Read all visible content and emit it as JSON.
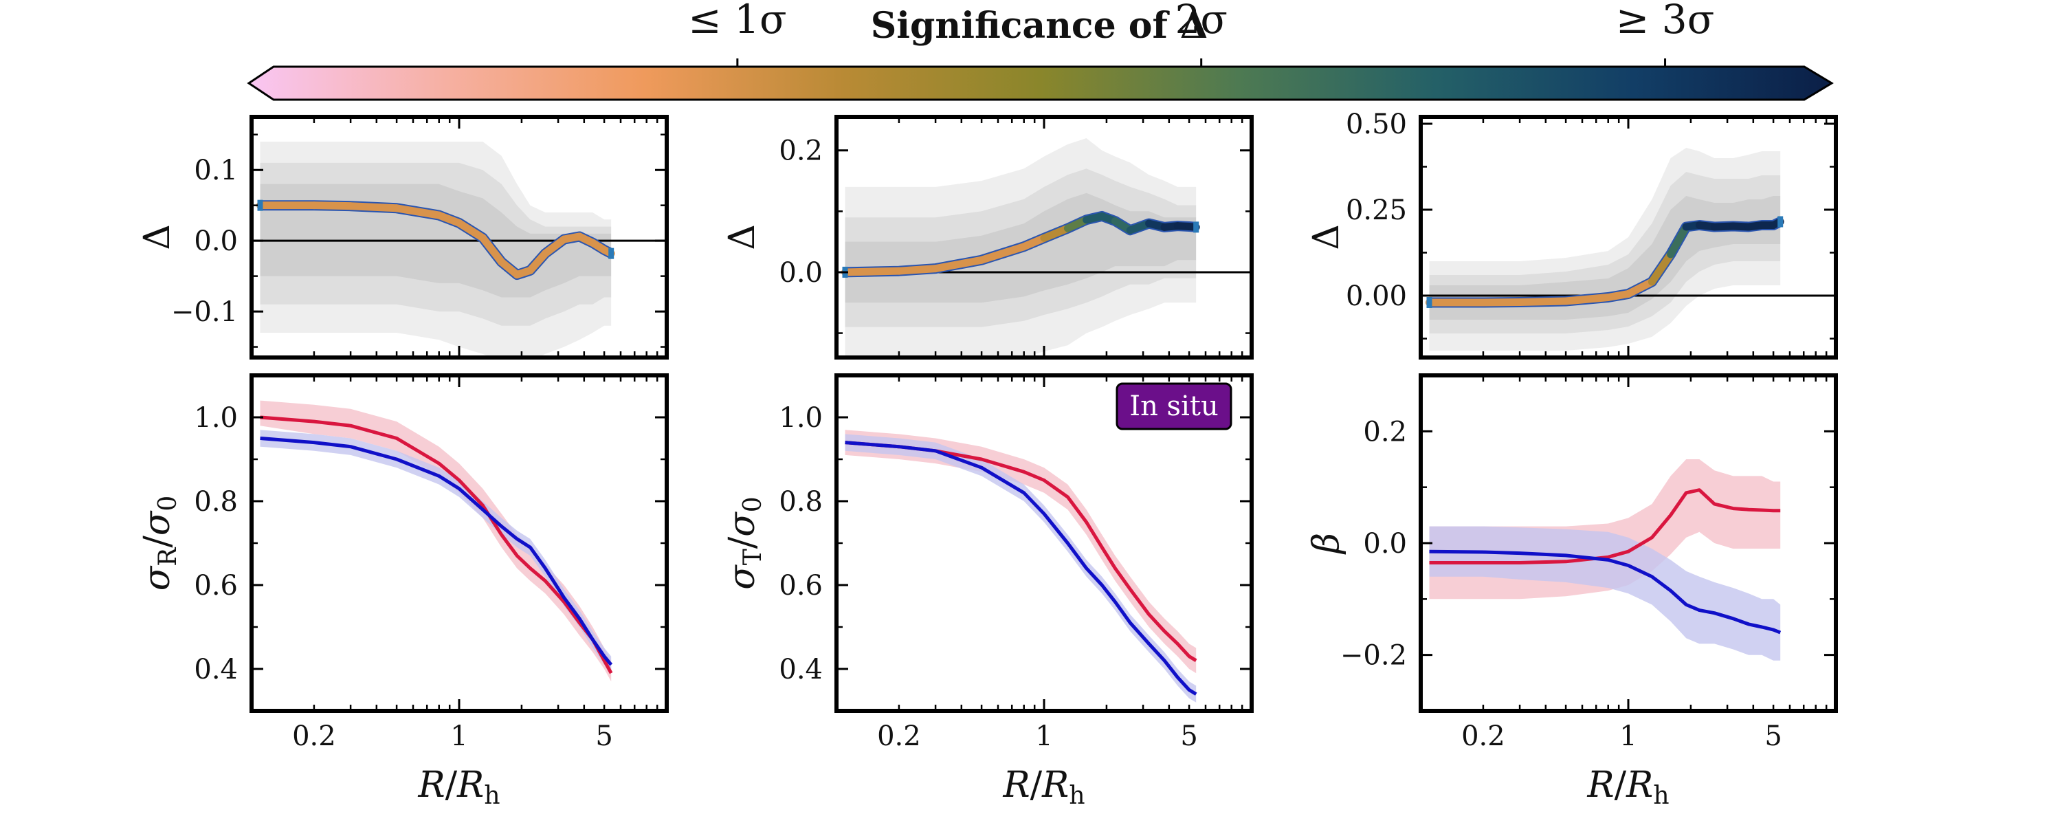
{
  "colorbar": {
    "title": "Significance of Δ",
    "ticks": [
      {
        "label": "≤ 1σ",
        "value": 1
      },
      {
        "label": "2σ",
        "value": 2
      },
      {
        "label": "≥ 3σ",
        "value": 3
      }
    ],
    "range": [
      0,
      3.3
    ],
    "colors": [
      "#f9c6f3",
      "#f6b0a2",
      "#ef9a5c",
      "#b98a35",
      "#8a862b",
      "#4e7a52",
      "#246067",
      "#123e66",
      "#0b1f47"
    ]
  },
  "annotation": {
    "label": "In situ",
    "bg": "#6b0f8a",
    "fg": "#ffffff"
  },
  "colors": {
    "red": "#d9163f",
    "blue": "#1010c8",
    "red_band": "#f5c2cb",
    "blue_band": "#c4c6ef",
    "grey_band": "#ececec",
    "zero_line": "#000000"
  },
  "x_axis": {
    "label": "R/R_h",
    "scale": "log",
    "ticks": [
      "0.2",
      "1",
      "5"
    ]
  },
  "chart_data": [
    {
      "type": "line",
      "panel": "top-left",
      "ylabel": "Δ",
      "xlim": [
        0.1,
        10
      ],
      "ylim": [
        -0.165,
        0.175
      ],
      "yticks": [
        -0.1,
        0.0,
        0.1
      ],
      "ytick_labels": [
        "−0.1",
        "0.0",
        "0.1"
      ],
      "show_xticklabels": false,
      "x": [
        0.11,
        0.2,
        0.3,
        0.5,
        0.8,
        1.0,
        1.3,
        1.6,
        1.9,
        2.2,
        2.6,
        3.2,
        3.8,
        4.4,
        5.0,
        5.4
      ],
      "values": [
        0.05,
        0.05,
        0.049,
        0.046,
        0.036,
        0.025,
        0.004,
        -0.03,
        -0.048,
        -0.042,
        -0.018,
        0.002,
        0.006,
        -0.003,
        -0.013,
        -0.018
      ],
      "significance": [
        1,
        1,
        1,
        1,
        1,
        1,
        1,
        1,
        1,
        1,
        1,
        1,
        1,
        1,
        1,
        1
      ],
      "bands": [
        {
          "lower": [
            -0.13,
            -0.13,
            -0.13,
            -0.13,
            -0.14,
            -0.15,
            -0.16,
            -0.17,
            -0.17,
            -0.17,
            -0.16,
            -0.15,
            -0.14,
            -0.13,
            -0.12,
            -0.12
          ],
          "upper": [
            0.14,
            0.14,
            0.14,
            0.14,
            0.14,
            0.14,
            0.14,
            0.12,
            0.08,
            0.05,
            0.04,
            0.04,
            0.04,
            0.04,
            0.03,
            0.03
          ]
        },
        {
          "lower": [
            -0.09,
            -0.09,
            -0.09,
            -0.09,
            -0.1,
            -0.1,
            -0.11,
            -0.12,
            -0.12,
            -0.12,
            -0.11,
            -0.1,
            -0.09,
            -0.09,
            -0.08,
            -0.08
          ],
          "upper": [
            0.11,
            0.11,
            0.11,
            0.11,
            0.11,
            0.11,
            0.1,
            0.08,
            0.05,
            0.03,
            0.02,
            0.02,
            0.02,
            0.02,
            0.02,
            0.02
          ]
        },
        {
          "lower": [
            -0.05,
            -0.05,
            -0.05,
            -0.05,
            -0.06,
            -0.06,
            -0.07,
            -0.08,
            -0.08,
            -0.08,
            -0.07,
            -0.06,
            -0.05,
            -0.05,
            -0.05,
            -0.05
          ],
          "upper": [
            0.08,
            0.08,
            0.08,
            0.08,
            0.08,
            0.07,
            0.06,
            0.04,
            0.02,
            0.01,
            0.01,
            0.01,
            0.01,
            0.01,
            0.01,
            0.01
          ]
        }
      ]
    },
    {
      "type": "line",
      "panel": "top-middle",
      "ylabel": "Δ",
      "xlim": [
        0.1,
        10
      ],
      "ylim": [
        -0.14,
        0.255
      ],
      "yticks": [
        0.0,
        0.2
      ],
      "ytick_labels": [
        "0.0",
        "0.2"
      ],
      "show_xticklabels": false,
      "x": [
        0.11,
        0.2,
        0.3,
        0.5,
        0.8,
        1.0,
        1.3,
        1.6,
        1.9,
        2.2,
        2.6,
        3.2,
        3.8,
        4.4,
        5.0,
        5.4
      ],
      "values": [
        0.0,
        0.002,
        0.006,
        0.02,
        0.042,
        0.056,
        0.072,
        0.086,
        0.092,
        0.084,
        0.069,
        0.08,
        0.074,
        0.076,
        0.075,
        0.074
      ],
      "significance": [
        1,
        1,
        1,
        1,
        1,
        1,
        1.5,
        2.4,
        2.7,
        2.4,
        2.3,
        2.9,
        3.1,
        3.2,
        3.2,
        3.2
      ],
      "bands": [
        {
          "lower": [
            -0.15,
            -0.15,
            -0.15,
            -0.15,
            -0.14,
            -0.13,
            -0.12,
            -0.1,
            -0.09,
            -0.08,
            -0.07,
            -0.06,
            -0.05,
            -0.05,
            -0.05,
            -0.05
          ],
          "upper": [
            0.14,
            0.14,
            0.14,
            0.15,
            0.17,
            0.19,
            0.21,
            0.22,
            0.2,
            0.19,
            0.18,
            0.16,
            0.15,
            0.14,
            0.14,
            0.14
          ]
        },
        {
          "lower": [
            -0.09,
            -0.09,
            -0.09,
            -0.09,
            -0.08,
            -0.07,
            -0.06,
            -0.05,
            -0.04,
            -0.03,
            -0.02,
            -0.02,
            -0.01,
            -0.01,
            -0.01,
            -0.01
          ],
          "upper": [
            0.09,
            0.09,
            0.09,
            0.1,
            0.12,
            0.14,
            0.16,
            0.17,
            0.16,
            0.15,
            0.14,
            0.13,
            0.12,
            0.11,
            0.11,
            0.11
          ]
        },
        {
          "lower": [
            -0.05,
            -0.05,
            -0.05,
            -0.05,
            -0.04,
            -0.03,
            -0.02,
            -0.01,
            0.0,
            0.01,
            0.01,
            0.01,
            0.01,
            0.02,
            0.02,
            0.02
          ],
          "upper": [
            0.05,
            0.05,
            0.05,
            0.06,
            0.08,
            0.1,
            0.12,
            0.13,
            0.12,
            0.11,
            0.1,
            0.1,
            0.09,
            0.09,
            0.09,
            0.09
          ]
        }
      ]
    },
    {
      "type": "line",
      "panel": "top-right",
      "ylabel": "Δ",
      "xlim": [
        0.1,
        10
      ],
      "ylim": [
        -0.18,
        0.52
      ],
      "yticks": [
        0.0,
        0.25,
        0.5
      ],
      "ytick_labels": [
        "0.00",
        "0.25",
        "0.50"
      ],
      "show_xticklabels": false,
      "x": [
        0.11,
        0.2,
        0.3,
        0.5,
        0.8,
        1.0,
        1.3,
        1.6,
        1.9,
        2.2,
        2.6,
        3.2,
        3.8,
        4.4,
        5.0,
        5.4
      ],
      "values": [
        -0.02,
        -0.02,
        -0.019,
        -0.016,
        -0.005,
        0.005,
        0.04,
        0.12,
        0.2,
        0.205,
        0.2,
        0.202,
        0.2,
        0.205,
        0.205,
        0.215
      ],
      "significance": [
        1,
        1,
        1,
        1,
        1,
        1,
        1,
        1.6,
        2.9,
        3.1,
        3.2,
        3.2,
        3.2,
        3.2,
        3.2,
        3.2
      ],
      "bands": [
        {
          "lower": [
            -0.16,
            -0.16,
            -0.16,
            -0.16,
            -0.15,
            -0.14,
            -0.12,
            -0.08,
            -0.03,
            0.0,
            0.02,
            0.03,
            0.03,
            0.03,
            0.03,
            0.03
          ],
          "upper": [
            0.1,
            0.1,
            0.1,
            0.11,
            0.13,
            0.17,
            0.28,
            0.4,
            0.43,
            0.42,
            0.4,
            0.4,
            0.41,
            0.42,
            0.42,
            0.42
          ]
        },
        {
          "lower": [
            -0.11,
            -0.11,
            -0.11,
            -0.11,
            -0.1,
            -0.09,
            -0.06,
            -0.02,
            0.04,
            0.07,
            0.09,
            0.1,
            0.1,
            0.1,
            0.1,
            0.1
          ],
          "upper": [
            0.06,
            0.06,
            0.06,
            0.07,
            0.09,
            0.12,
            0.21,
            0.32,
            0.36,
            0.35,
            0.34,
            0.34,
            0.34,
            0.35,
            0.35,
            0.35
          ]
        },
        {
          "lower": [
            -0.07,
            -0.07,
            -0.07,
            -0.07,
            -0.06,
            -0.05,
            -0.01,
            0.04,
            0.1,
            0.13,
            0.14,
            0.15,
            0.15,
            0.15,
            0.15,
            0.15
          ],
          "upper": [
            0.03,
            0.03,
            0.03,
            0.04,
            0.05,
            0.08,
            0.15,
            0.25,
            0.29,
            0.28,
            0.27,
            0.27,
            0.28,
            0.28,
            0.29,
            0.29
          ]
        }
      ]
    },
    {
      "type": "line",
      "panel": "bottom-left",
      "ylabel": "σ_R/σ_0",
      "xlabel": "R/R_h",
      "xlim": [
        0.1,
        10
      ],
      "ylim": [
        0.3,
        1.1
      ],
      "yticks": [
        0.4,
        0.6,
        0.8,
        1.0
      ],
      "ytick_labels": [
        "0.4",
        "0.6",
        "0.8",
        "1.0"
      ],
      "show_xticklabels": true,
      "x": [
        0.11,
        0.2,
        0.3,
        0.5,
        0.8,
        1.0,
        1.3,
        1.6,
        1.9,
        2.2,
        2.6,
        3.2,
        3.8,
        4.4,
        5.0,
        5.4
      ],
      "series": [
        {
          "color": "red",
          "values": [
            1.0,
            0.99,
            0.98,
            0.95,
            0.89,
            0.85,
            0.79,
            0.72,
            0.67,
            0.64,
            0.61,
            0.56,
            0.51,
            0.47,
            0.42,
            0.39
          ],
          "band": {
            "lower": [
              0.98,
              0.96,
              0.95,
              0.92,
              0.86,
              0.82,
              0.76,
              0.69,
              0.64,
              0.61,
              0.58,
              0.53,
              0.48,
              0.44,
              0.4,
              0.37
            ],
            "upper": [
              1.04,
              1.03,
              1.02,
              0.99,
              0.93,
              0.89,
              0.83,
              0.77,
              0.72,
              0.69,
              0.65,
              0.6,
              0.55,
              0.5,
              0.45,
              0.42
            ]
          }
        },
        {
          "color": "blue",
          "values": [
            0.95,
            0.94,
            0.93,
            0.9,
            0.86,
            0.83,
            0.78,
            0.74,
            0.71,
            0.69,
            0.64,
            0.57,
            0.52,
            0.47,
            0.43,
            0.41
          ],
          "band": {
            "lower": [
              0.93,
              0.92,
              0.91,
              0.88,
              0.84,
              0.81,
              0.76,
              0.72,
              0.69,
              0.67,
              0.62,
              0.55,
              0.5,
              0.45,
              0.41,
              0.39
            ],
            "upper": [
              0.97,
              0.96,
              0.95,
              0.92,
              0.88,
              0.85,
              0.8,
              0.76,
              0.73,
              0.71,
              0.66,
              0.59,
              0.54,
              0.49,
              0.45,
              0.43
            ]
          }
        }
      ]
    },
    {
      "type": "line",
      "panel": "bottom-middle",
      "ylabel": "σ_T/σ_0",
      "xlabel": "R/R_h",
      "xlim": [
        0.1,
        10
      ],
      "ylim": [
        0.3,
        1.1
      ],
      "yticks": [
        0.4,
        0.6,
        0.8,
        1.0
      ],
      "ytick_labels": [
        "0.4",
        "0.6",
        "0.8",
        "1.0"
      ],
      "show_xticklabels": true,
      "x": [
        0.11,
        0.2,
        0.3,
        0.5,
        0.8,
        1.0,
        1.3,
        1.6,
        1.9,
        2.2,
        2.6,
        3.2,
        3.8,
        4.4,
        5.0,
        5.4
      ],
      "series": [
        {
          "color": "red",
          "values": [
            0.94,
            0.93,
            0.92,
            0.9,
            0.87,
            0.85,
            0.81,
            0.75,
            0.69,
            0.64,
            0.59,
            0.53,
            0.49,
            0.46,
            0.43,
            0.42
          ],
          "band": {
            "lower": [
              0.91,
              0.9,
              0.89,
              0.87,
              0.84,
              0.82,
              0.78,
              0.72,
              0.66,
              0.61,
              0.56,
              0.5,
              0.46,
              0.43,
              0.4,
              0.39
            ],
            "upper": [
              0.97,
              0.96,
              0.95,
              0.93,
              0.9,
              0.88,
              0.84,
              0.78,
              0.72,
              0.67,
              0.62,
              0.56,
              0.52,
              0.49,
              0.46,
              0.45
            ]
          }
        },
        {
          "color": "blue",
          "values": [
            0.94,
            0.93,
            0.92,
            0.88,
            0.82,
            0.77,
            0.7,
            0.64,
            0.6,
            0.56,
            0.51,
            0.46,
            0.42,
            0.38,
            0.35,
            0.34
          ],
          "band": {
            "lower": [
              0.92,
              0.91,
              0.9,
              0.86,
              0.8,
              0.75,
              0.68,
              0.62,
              0.58,
              0.54,
              0.49,
              0.44,
              0.4,
              0.36,
              0.33,
              0.32
            ],
            "upper": [
              0.96,
              0.95,
              0.94,
              0.9,
              0.84,
              0.79,
              0.72,
              0.66,
              0.62,
              0.58,
              0.53,
              0.48,
              0.44,
              0.4,
              0.37,
              0.36
            ]
          }
        }
      ]
    },
    {
      "type": "line",
      "panel": "bottom-right",
      "ylabel": "β",
      "xlabel": "R/R_h",
      "xlim": [
        0.1,
        10
      ],
      "ylim": [
        -0.3,
        0.3
      ],
      "yticks": [
        -0.2,
        0.0,
        0.2
      ],
      "ytick_labels": [
        "−0.2",
        "0.0",
        "0.2"
      ],
      "show_xticklabels": true,
      "x": [
        0.11,
        0.2,
        0.3,
        0.5,
        0.8,
        1.0,
        1.3,
        1.6,
        1.9,
        2.2,
        2.6,
        3.2,
        3.8,
        4.4,
        5.0,
        5.4
      ],
      "series": [
        {
          "color": "red",
          "values": [
            -0.035,
            -0.035,
            -0.035,
            -0.033,
            -0.025,
            -0.015,
            0.01,
            0.05,
            0.09,
            0.095,
            0.07,
            0.062,
            0.06,
            0.059,
            0.058,
            0.058
          ],
          "band": {
            "lower": [
              -0.1,
              -0.1,
              -0.1,
              -0.095,
              -0.085,
              -0.075,
              -0.05,
              -0.02,
              0.01,
              0.02,
              0.0,
              -0.01,
              -0.01,
              -0.01,
              -0.01,
              -0.01
            ],
            "upper": [
              0.03,
              0.03,
              0.03,
              0.03,
              0.035,
              0.045,
              0.07,
              0.12,
              0.15,
              0.15,
              0.13,
              0.12,
              0.12,
              0.12,
              0.11,
              0.11
            ]
          }
        },
        {
          "color": "blue",
          "values": [
            -0.015,
            -0.016,
            -0.018,
            -0.022,
            -0.03,
            -0.04,
            -0.06,
            -0.085,
            -0.11,
            -0.12,
            -0.125,
            -0.135,
            -0.145,
            -0.15,
            -0.155,
            -0.16
          ],
          "band": {
            "lower": [
              -0.06,
              -0.06,
              -0.065,
              -0.07,
              -0.08,
              -0.09,
              -0.11,
              -0.14,
              -0.17,
              -0.18,
              -0.18,
              -0.19,
              -0.2,
              -0.2,
              -0.21,
              -0.21
            ],
            "upper": [
              0.03,
              0.03,
              0.028,
              0.025,
              0.02,
              0.01,
              -0.01,
              -0.03,
              -0.05,
              -0.06,
              -0.07,
              -0.08,
              -0.09,
              -0.1,
              -0.1,
              -0.11
            ]
          }
        }
      ]
    }
  ]
}
